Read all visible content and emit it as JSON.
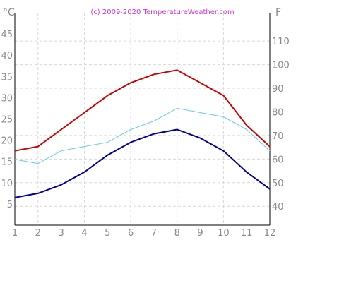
{
  "credit": "(c) 2009-2020  TemperatureWeather.com",
  "chart_data": {
    "type": "line",
    "left_axis_unit": "°C",
    "right_axis_unit": "F",
    "categories": [
      "1",
      "2",
      "3",
      "4",
      "5",
      "6",
      "7",
      "8",
      "9",
      "10",
      "11",
      "12"
    ],
    "x": [
      1,
      2,
      3,
      4,
      5,
      6,
      7,
      8,
      9,
      10,
      11,
      12
    ],
    "ylim": [
      0,
      50
    ],
    "y_ticks": [
      5,
      10,
      15,
      20,
      25,
      30,
      35,
      40,
      45
    ],
    "y2_ticks": [
      40,
      50,
      60,
      70,
      80,
      90,
      100,
      110
    ],
    "grid": true,
    "series": [
      {
        "color": "#cc0000",
        "width": 2,
        "values": [
          17.5,
          18.5,
          22.5,
          26.5,
          30.5,
          33.5,
          35.5,
          36.5,
          33.5,
          30.5,
          23.5,
          18.5
        ]
      },
      {
        "color": "#66ccee",
        "width": 1,
        "values": [
          15.5,
          14.5,
          17.5,
          18.5,
          19.5,
          22.5,
          24.5,
          27.5,
          26.5,
          25.5,
          22.5,
          17.5
        ]
      },
      {
        "color": "#000099",
        "width": 2,
        "values": [
          6.5,
          7.5,
          9.5,
          12.5,
          16.5,
          19.5,
          21.5,
          22.5,
          20.5,
          17.5,
          12.5,
          8.5
        ]
      }
    ]
  }
}
